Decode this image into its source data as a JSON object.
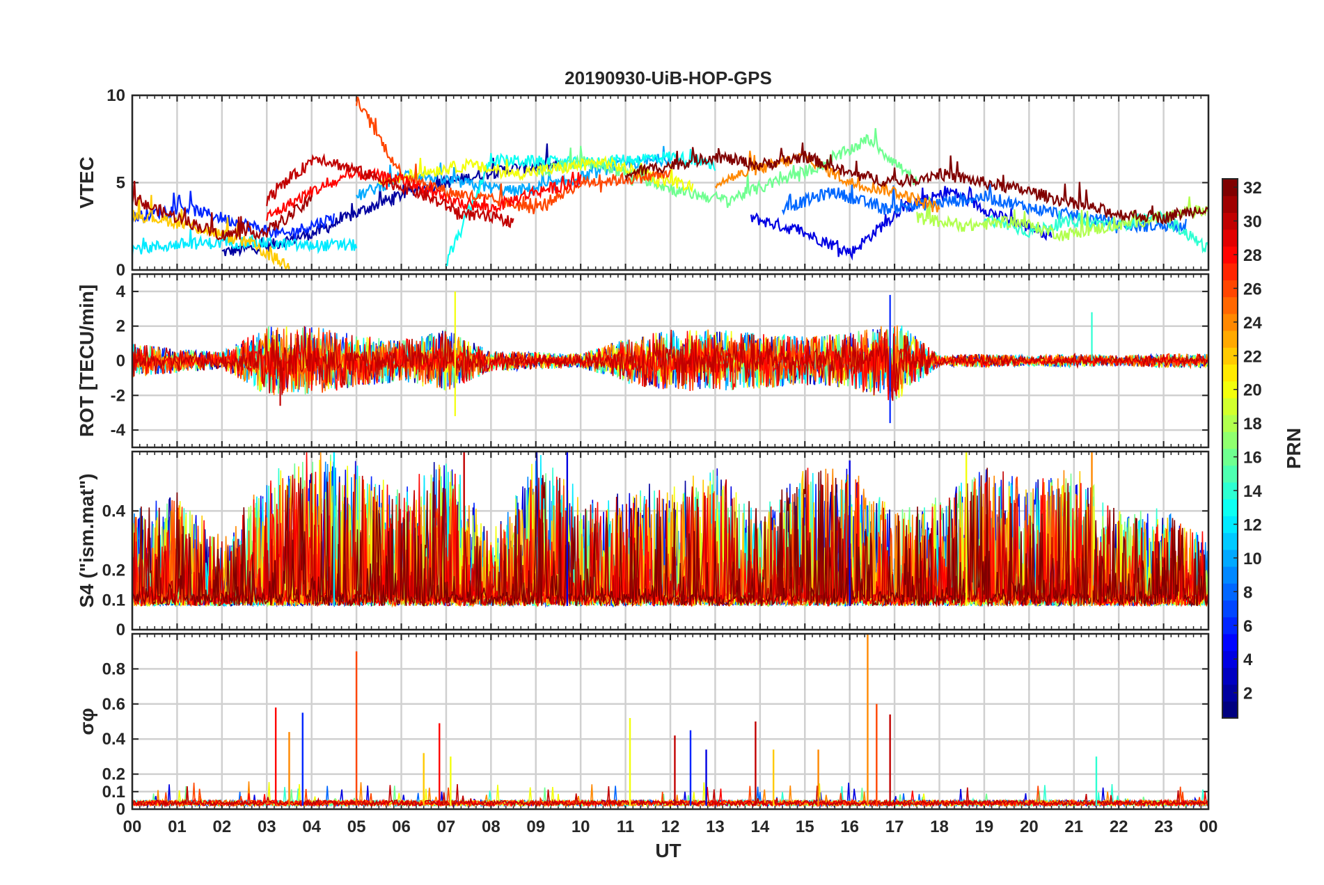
{
  "chart_data": {
    "type": "line",
    "title": "20190930-UiB-HOP-GPS",
    "xlabel": "UT",
    "x_tick_labels": [
      "00",
      "01",
      "02",
      "03",
      "04",
      "05",
      "06",
      "07",
      "08",
      "09",
      "10",
      "11",
      "12",
      "13",
      "14",
      "15",
      "16",
      "17",
      "18",
      "19",
      "20",
      "21",
      "22",
      "23",
      "00"
    ],
    "x_range_hours": [
      0,
      24
    ],
    "colorbar": {
      "label": "PRN",
      "range": [
        1,
        32
      ],
      "colormap": "jet",
      "tick_labels": [
        "2",
        "4",
        "6",
        "8",
        "10",
        "12",
        "14",
        "16",
        "18",
        "20",
        "22",
        "24",
        "26",
        "28",
        "30",
        "32"
      ]
    },
    "panels": [
      {
        "id": "vtec",
        "ylabel": "VTEC",
        "ylim": [
          0,
          10
        ],
        "y_ticks": [
          0,
          5,
          10
        ],
        "y_tick_labels": [
          "0",
          "5",
          "10"
        ],
        "series": [
          {
            "prn": 2,
            "start": 2.0,
            "end": 9.5,
            "values": [
              1.0,
              1.4,
              2.2,
              3.5,
              4.6,
              5.2,
              5.8,
              6.0
            ]
          },
          {
            "prn": 4,
            "start": 13.8,
            "end": 20.5,
            "values": [
              3.0,
              2.2,
              1.0,
              3.5,
              4.5,
              3.0,
              2.0
            ]
          },
          {
            "prn": 6,
            "start": 0.0,
            "end": 4.5,
            "values": [
              3.0,
              3.6,
              2.8,
              2.0,
              3.0
            ]
          },
          {
            "prn": 8,
            "start": 14.5,
            "end": 23.5,
            "values": [
              3.5,
              4.5,
              3.5,
              3.8,
              4.2,
              3.5,
              3.0,
              2.5,
              2.6
            ]
          },
          {
            "prn": 10,
            "start": 5.0,
            "end": 12.0,
            "values": [
              4.2,
              5.5,
              5.0,
              4.5,
              5.0,
              6.0,
              6.4
            ]
          },
          {
            "prn": 12,
            "start": 0.0,
            "end": 5.0,
            "values": [
              1.2,
              1.5,
              1.6,
              1.4,
              1.4
            ]
          },
          {
            "prn": 13,
            "start": 7.0,
            "end": 13.0,
            "values": [
              0.3,
              6.3,
              6.2,
              6.1,
              6.3,
              6.5,
              6.0
            ]
          },
          {
            "prn": 14,
            "start": 19.0,
            "end": 24.0,
            "values": [
              3.0,
              2.2,
              2.8,
              2.6,
              3.0,
              1.2
            ]
          },
          {
            "prn": 16,
            "start": 9.0,
            "end": 17.5,
            "values": [
              5.6,
              6.2,
              5.5,
              4.5,
              4.0,
              5.0,
              6.0,
              7.5,
              5.0
            ]
          },
          {
            "prn": 18,
            "start": 17.5,
            "end": 24.0,
            "values": [
              3.0,
              2.5,
              2.8,
              2.0,
              2.5,
              3.0,
              3.5
            ]
          },
          {
            "prn": 20,
            "start": 5.5,
            "end": 12.5,
            "values": [
              5.0,
              5.6,
              6.0,
              5.5,
              5.8,
              6.2,
              5.4,
              4.8
            ]
          },
          {
            "prn": 22,
            "start": 0.0,
            "end": 3.5,
            "values": [
              3.2,
              2.8,
              2.2,
              1.5,
              0.2
            ]
          },
          {
            "prn": 24,
            "start": 13.0,
            "end": 18.0,
            "values": [
              5.0,
              5.8,
              6.5,
              5.0,
              4.5,
              3.5
            ]
          },
          {
            "prn": 26,
            "start": 5.0,
            "end": 12.0,
            "values": [
              9.7,
              5.5,
              4.5,
              4.0,
              3.5,
              5.0,
              5.2,
              5.5
            ]
          },
          {
            "prn": 28,
            "start": 3.0,
            "end": 10.0,
            "values": [
              3.0,
              4.5,
              5.5,
              5.2,
              4.0,
              3.5,
              4.5,
              5.0
            ]
          },
          {
            "prn": 30,
            "start": 3.0,
            "end": 8.5,
            "values": [
              4.0,
              6.5,
              5.5,
              4.5,
              3.2,
              2.8
            ]
          },
          {
            "prn": 31,
            "start": 0.0,
            "end": 4.0,
            "values": [
              4.0,
              3.0,
              2.0,
              2.2,
              4.0
            ]
          },
          {
            "prn": 32,
            "start": 11.0,
            "end": 24.0,
            "values": [
              5.5,
              6.0,
              6.5,
              6.0,
              6.5,
              5.5,
              5.0,
              5.5,
              5.0,
              4.5,
              3.8,
              3.2,
              3.0,
              3.6
            ]
          }
        ]
      },
      {
        "id": "rot",
        "ylabel": "ROT [TECU/min]",
        "ylim": [
          -5,
          5
        ],
        "y_ticks": [
          -4,
          -2,
          0,
          2,
          4
        ],
        "y_tick_labels": [
          "-4",
          "-2",
          "0",
          "2",
          "4"
        ],
        "activity_envelope": {
          "hours": [
            0,
            1,
            2,
            3,
            4,
            5,
            6,
            7,
            8,
            9,
            10,
            11,
            12,
            13,
            14,
            15,
            16,
            17,
            18,
            19,
            20,
            21,
            22,
            23,
            24
          ],
          "amplitude": [
            1.0,
            0.7,
            0.5,
            2.0,
            2.0,
            1.5,
            1.2,
            1.8,
            0.6,
            0.5,
            0.4,
            1.3,
            1.8,
            1.8,
            1.6,
            1.4,
            1.6,
            2.4,
            0.3,
            0.4,
            0.3,
            0.4,
            0.3,
            0.4,
            0.4
          ]
        },
        "peaks": [
          {
            "hour": 7.2,
            "value": 4.0,
            "prn": 20
          },
          {
            "hour": 7.2,
            "value": -3.2,
            "prn": 20
          },
          {
            "hour": 16.9,
            "value": 3.8,
            "prn": 6
          },
          {
            "hour": 16.9,
            "value": -3.6,
            "prn": 6
          },
          {
            "hour": 3.3,
            "value": -2.6,
            "prn": 30
          },
          {
            "hour": 21.4,
            "value": 2.8,
            "prn": 14
          }
        ]
      },
      {
        "id": "s4",
        "ylabel": "S4 (\"ism.mat\")",
        "ylim": [
          0,
          0.6
        ],
        "y_ticks": [
          0,
          0.1,
          0.2,
          0.4
        ],
        "y_tick_labels": [
          "0",
          "0.1",
          "0.2",
          "0.4"
        ],
        "baseline": 0.08,
        "activity_envelope": {
          "hours": [
            0,
            1,
            2,
            3,
            4,
            5,
            6,
            7,
            8,
            9,
            10,
            11,
            12,
            13,
            14,
            15,
            16,
            17,
            18,
            19,
            20,
            21,
            22,
            23,
            24
          ],
          "amplitude": [
            0.3,
            0.35,
            0.2,
            0.4,
            0.5,
            0.45,
            0.35,
            0.5,
            0.2,
            0.5,
            0.35,
            0.35,
            0.4,
            0.45,
            0.3,
            0.45,
            0.45,
            0.3,
            0.35,
            0.45,
            0.4,
            0.45,
            0.3,
            0.3,
            0.2
          ]
        },
        "peaks": [
          {
            "hour": 4.5,
            "value": 0.6,
            "prn": 12
          },
          {
            "hour": 7.4,
            "value": 0.6,
            "prn": 30
          },
          {
            "hour": 9.7,
            "value": 0.6,
            "prn": 4
          },
          {
            "hour": 16.0,
            "value": 0.57,
            "prn": 4
          },
          {
            "hour": 18.6,
            "value": 0.6,
            "prn": 20
          },
          {
            "hour": 21.4,
            "value": 0.6,
            "prn": 24
          }
        ]
      },
      {
        "id": "sigma_phi",
        "ylabel": "σφ",
        "ylim": [
          0,
          1
        ],
        "y_ticks": [
          0,
          0.1,
          0.2,
          0.4,
          0.6,
          0.8
        ],
        "y_tick_labels": [
          "0",
          "0.1",
          "0.2",
          "0.4",
          "0.6",
          "0.8"
        ],
        "baseline": 0.02,
        "peaks": [
          {
            "hour": 3.2,
            "value": 0.58,
            "prn": 28
          },
          {
            "hour": 3.5,
            "value": 0.44,
            "prn": 24
          },
          {
            "hour": 3.8,
            "value": 0.55,
            "prn": 6
          },
          {
            "hour": 5.0,
            "value": 0.9,
            "prn": 26
          },
          {
            "hour": 6.5,
            "value": 0.32,
            "prn": 22
          },
          {
            "hour": 6.85,
            "value": 0.49,
            "prn": 28
          },
          {
            "hour": 7.1,
            "value": 0.3,
            "prn": 20
          },
          {
            "hour": 11.1,
            "value": 0.52,
            "prn": 20
          },
          {
            "hour": 12.1,
            "value": 0.42,
            "prn": 30
          },
          {
            "hour": 12.45,
            "value": 0.45,
            "prn": 6
          },
          {
            "hour": 12.8,
            "value": 0.34,
            "prn": 4
          },
          {
            "hour": 13.9,
            "value": 0.5,
            "prn": 30
          },
          {
            "hour": 14.3,
            "value": 0.34,
            "prn": 22
          },
          {
            "hour": 15.3,
            "value": 0.34,
            "prn": 24
          },
          {
            "hour": 16.4,
            "value": 1.0,
            "prn": 24
          },
          {
            "hour": 16.6,
            "value": 0.6,
            "prn": 26
          },
          {
            "hour": 16.9,
            "value": 0.54,
            "prn": 30
          },
          {
            "hour": 21.5,
            "value": 0.3,
            "prn": 14
          }
        ]
      }
    ]
  }
}
